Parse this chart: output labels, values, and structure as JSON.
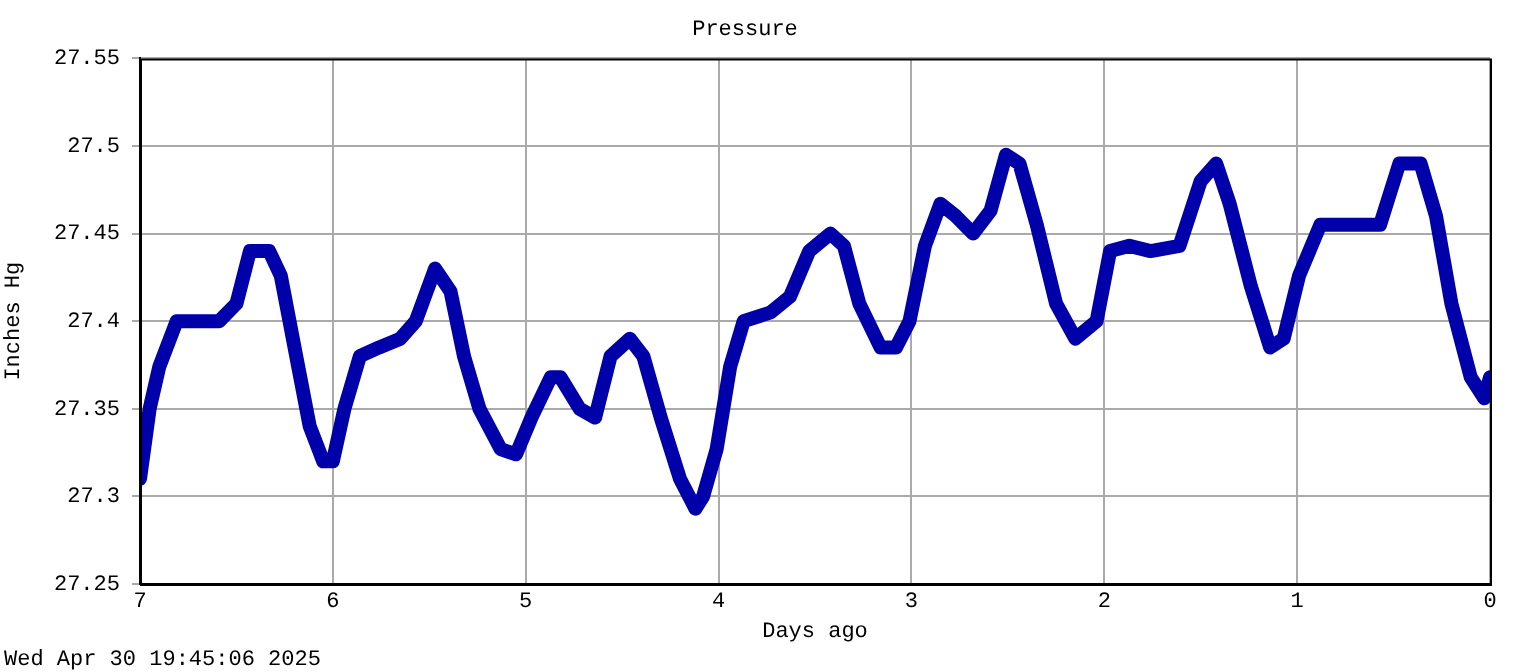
{
  "chart_data": {
    "type": "line",
    "title": "Pressure",
    "xlabel": "Days ago",
    "ylabel": "Inches Hg",
    "annotations": [
      "Wed Apr 30 19:45:06 2025"
    ],
    "x": [
      7,
      6.95,
      6.9,
      6.81,
      6.69,
      6.59,
      6.5,
      6.43,
      6.33,
      6.27,
      6.19,
      6.12,
      6.05,
      6.0,
      5.94,
      5.86,
      5.76,
      5.65,
      5.57,
      5.47,
      5.39,
      5.32,
      5.24,
      5.13,
      5.05,
      4.97,
      4.87,
      4.82,
      4.72,
      4.64,
      4.56,
      4.46,
      4.39,
      4.3,
      4.2,
      4.12,
      4.08,
      4.01,
      3.94,
      3.87,
      3.73,
      3.63,
      3.53,
      3.42,
      3.35,
      3.27,
      3.16,
      3.08,
      3.01,
      2.93,
      2.85,
      2.77,
      2.68,
      2.59,
      2.51,
      2.44,
      2.35,
      2.25,
      2.15,
      2.04,
      1.97,
      1.87,
      1.76,
      1.61,
      1.5,
      1.42,
      1.35,
      1.24,
      1.14,
      1.07,
      0.99,
      0.88,
      0.73,
      0.57,
      0.47,
      0.36,
      0.28,
      0.2,
      0.1,
      0.03,
      0
    ],
    "series": [
      {
        "color": "#0000aa",
        "values": [
          27.31,
          27.35,
          27.374,
          27.4,
          27.4,
          27.4,
          27.41,
          27.44,
          27.44,
          27.426,
          27.38,
          27.34,
          27.32,
          27.32,
          27.35,
          27.38,
          27.385,
          27.39,
          27.4,
          27.43,
          27.417,
          27.38,
          27.35,
          27.327,
          27.324,
          27.345,
          27.368,
          27.368,
          27.35,
          27.345,
          27.38,
          27.39,
          27.38,
          27.345,
          27.31,
          27.293,
          27.3,
          27.327,
          27.374,
          27.4,
          27.405,
          27.414,
          27.44,
          27.45,
          27.443,
          27.41,
          27.385,
          27.385,
          27.4,
          27.443,
          27.467,
          27.46,
          27.45,
          27.463,
          27.495,
          27.49,
          27.455,
          27.41,
          27.39,
          27.4,
          27.44,
          27.443,
          27.44,
          27.443,
          27.48,
          27.49,
          27.467,
          27.42,
          27.385,
          27.39,
          27.426,
          27.455,
          27.455,
          27.455,
          27.49,
          27.49,
          27.46,
          27.41,
          27.368,
          27.356,
          27.368
        ]
      }
    ],
    "xlim": [
      7,
      0
    ],
    "xticks": [
      7,
      6,
      5,
      4,
      3,
      2,
      1,
      0
    ],
    "ylim": [
      27.25,
      27.55
    ],
    "yticks": [
      27.25,
      27.3,
      27.35,
      27.4,
      27.45,
      27.5,
      27.55
    ],
    "grid": true,
    "legend": false,
    "marker": "none",
    "line_style": "solid"
  }
}
